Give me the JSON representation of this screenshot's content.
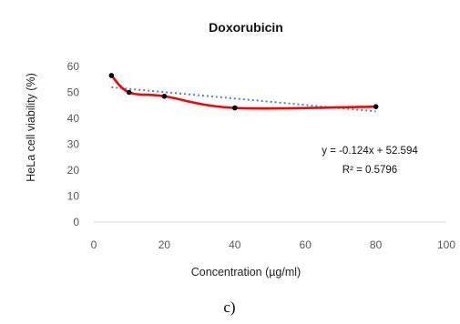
{
  "chart_data": {
    "type": "line",
    "title": "Doxorubicin",
    "xlabel": "Concentration (µg/ml)",
    "ylabel": "HeLa cell viability (%)",
    "xlim": [
      0,
      100
    ],
    "ylim": [
      0,
      60
    ],
    "x_ticks": [
      0,
      20,
      40,
      60,
      80,
      100
    ],
    "y_ticks": [
      0,
      10,
      20,
      30,
      40,
      50,
      60
    ],
    "grid": false,
    "legend": "none",
    "series": [
      {
        "x": [
          5,
          10,
          20,
          40,
          80
        ],
        "y": [
          56.5,
          50,
          48.5,
          44,
          44.5
        ],
        "line_color": "#ff0000",
        "marker_color": "#000000",
        "smooth": true
      }
    ],
    "trendline": {
      "kind": "linear",
      "slope": -0.124,
      "intercept": 52.594,
      "x_range": [
        5,
        80
      ],
      "color": "#4a86c5",
      "style": "dotted",
      "equation": "y = -0.124x + 52.594",
      "r_squared": "R² = 0.5796"
    }
  },
  "caption": "c)"
}
